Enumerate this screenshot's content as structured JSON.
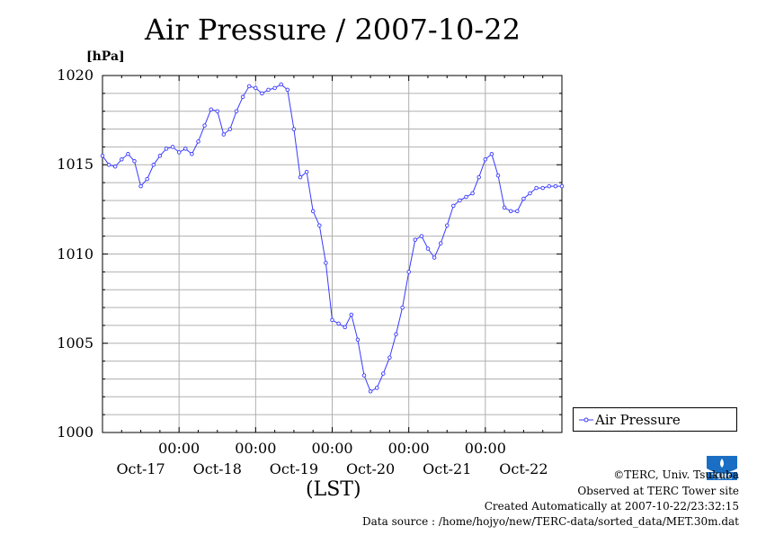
{
  "chart_data": {
    "type": "line",
    "title": "Air Pressure / 2007-10-22",
    "ylabel": "[hPa]",
    "xlabel": "(LST)",
    "ylim": [
      1000,
      1020
    ],
    "yticks": [
      "1000",
      "1005",
      "1010",
      "1015",
      "1020"
    ],
    "x_time_labels": [
      "00:00",
      "00:00",
      "00:00",
      "00:00",
      "00:00"
    ],
    "x_date_labels": [
      "Oct-17",
      "Oct-18",
      "Oct-19",
      "Oct-20",
      "Oct-21",
      "Oct-22"
    ],
    "x_range_hours": [
      0,
      144
    ],
    "grid": true,
    "legend_position": "right",
    "series": [
      {
        "name": "Air Pressure",
        "color": "#3a3aff",
        "x_hours": [
          0,
          2,
          4,
          6,
          8,
          10,
          12,
          14,
          16,
          18,
          20,
          22,
          24,
          26,
          28,
          30,
          32,
          34,
          36,
          38,
          40,
          42,
          44,
          46,
          48,
          50,
          52,
          54,
          56,
          58,
          60,
          62,
          64,
          66,
          68,
          70,
          72,
          74,
          76,
          78,
          80,
          82,
          84,
          86,
          88,
          90,
          92,
          94,
          96,
          98,
          100,
          102,
          104,
          106,
          108,
          110,
          112,
          114,
          116,
          118,
          120,
          122,
          124,
          126,
          128,
          130,
          132,
          134,
          136,
          138,
          140,
          142,
          144
        ],
        "values": [
          1015.5,
          1015.0,
          1014.9,
          1015.3,
          1015.6,
          1015.2,
          1013.8,
          1014.2,
          1015.0,
          1015.5,
          1015.9,
          1016.0,
          1015.7,
          1015.9,
          1015.6,
          1016.3,
          1017.2,
          1018.1,
          1018.0,
          1016.7,
          1017.0,
          1018.0,
          1018.8,
          1019.4,
          1019.3,
          1019.0,
          1019.2,
          1019.3,
          1019.5,
          1019.2,
          1017.0,
          1014.3,
          1014.6,
          1012.4,
          1011.6,
          1009.5,
          1006.3,
          1006.1,
          1005.9,
          1006.6,
          1005.2,
          1003.2,
          1002.3,
          1002.5,
          1003.3,
          1004.2,
          1005.5,
          1007.0,
          1009.0,
          1010.8,
          1011.0,
          1010.3,
          1009.8,
          1010.6,
          1011.6,
          1012.7,
          1013.0,
          1013.2,
          1013.4,
          1014.3,
          1015.3,
          1015.6,
          1014.4,
          1012.6,
          1012.4,
          1012.4,
          1013.1,
          1013.4,
          1013.7,
          1013.7,
          1013.8,
          1013.8,
          1013.8
        ]
      }
    ]
  },
  "credits": {
    "org": "©TERC, Univ. Tsukuba",
    "observed": "Observed at TERC Tower site",
    "created": "Created Automatically at 2007-10-22/23:32:15",
    "source": "Data source : /home/hojyo/new/TERC-data/sorted_data/MET.30m.dat"
  },
  "logo": {
    "icon": "terc-logo-icon",
    "text": "TERC",
    "color": "#1a6fc4"
  }
}
